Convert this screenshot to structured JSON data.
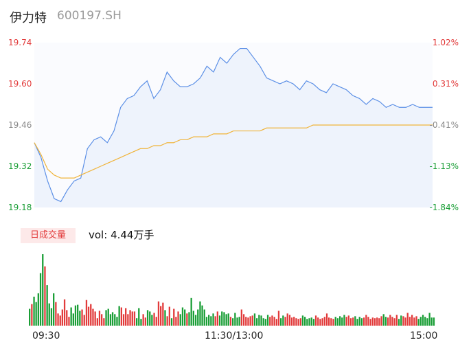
{
  "header": {
    "name": "伊力特",
    "code": "600197.SH"
  },
  "volume_panel": {
    "badge": "日成交量",
    "vol_label": "vol:",
    "vol_value": "4.44万手"
  },
  "colors": {
    "price_line": "#5b8fe6",
    "avg_line": "#f0b43a",
    "up": "#e23b3b",
    "down": "#1a9e36",
    "area_fill": "#eef3fc"
  },
  "chart_data": [
    {
      "type": "line",
      "yticks_left": [
        "19.74",
        "19.60",
        "19.46",
        "19.32",
        "19.18"
      ],
      "yticks_right": [
        "1.02%",
        "0.31%",
        "-0.41%",
        "-1.13%",
        "-1.84%"
      ],
      "ylim": [
        19.18,
        19.74
      ],
      "xticks": [
        "09:30",
        "11:30/13:00",
        "15:00"
      ],
      "x": [
        0,
        4,
        8,
        12,
        16,
        20,
        24,
        28,
        32,
        36,
        40,
        44,
        48,
        52,
        56,
        60,
        64,
        68,
        72,
        76,
        80,
        84,
        88,
        92,
        96,
        100,
        104,
        108,
        112,
        116,
        120,
        124,
        128,
        132,
        136,
        140,
        144,
        148,
        152,
        156,
        160,
        164,
        168,
        172,
        176,
        180,
        184,
        188,
        192,
        196,
        200,
        204,
        208,
        212,
        216,
        220,
        224,
        228,
        232,
        236,
        240
      ],
      "series": [
        {
          "values": [
            19.4,
            19.35,
            19.27,
            19.21,
            19.2,
            19.24,
            19.27,
            19.28,
            19.38,
            19.41,
            19.42,
            19.4,
            19.44,
            19.52,
            19.55,
            19.56,
            19.59,
            19.61,
            19.55,
            19.58,
            19.64,
            19.61,
            19.59,
            19.59,
            19.6,
            19.62,
            19.66,
            19.64,
            19.69,
            19.67,
            19.7,
            19.72,
            19.72,
            19.69,
            19.66,
            19.62,
            19.61,
            19.6,
            19.61,
            19.6,
            19.58,
            19.61,
            19.6,
            19.58,
            19.57,
            19.6,
            19.59,
            19.58,
            19.56,
            19.55,
            19.53,
            19.55,
            19.54,
            19.52,
            19.53,
            19.52,
            19.52,
            19.53,
            19.52,
            19.52,
            19.52
          ]
        },
        {
          "values": [
            19.4,
            19.36,
            19.31,
            19.29,
            19.28,
            19.28,
            19.28,
            19.29,
            19.3,
            19.31,
            19.32,
            19.33,
            19.34,
            19.35,
            19.36,
            19.37,
            19.38,
            19.38,
            19.39,
            19.39,
            19.4,
            19.4,
            19.41,
            19.41,
            19.42,
            19.42,
            19.42,
            19.43,
            19.43,
            19.43,
            19.44,
            19.44,
            19.44,
            19.44,
            19.44,
            19.45,
            19.45,
            19.45,
            19.45,
            19.45,
            19.45,
            19.45,
            19.46,
            19.46,
            19.46,
            19.46,
            19.46,
            19.46,
            19.46,
            19.46,
            19.46,
            19.46,
            19.46,
            19.46,
            19.46,
            19.46,
            19.46,
            19.46,
            19.46,
            19.46,
            19.46
          ]
        }
      ]
    },
    {
      "type": "bar",
      "values": [
        2.5,
        3.2,
        4.3,
        3.5,
        4.8,
        7.8,
        10.6,
        8.8,
        6.0,
        3.3,
        2.6,
        4.8,
        3.5,
        1.8,
        1.5,
        2.4,
        3.9,
        2.3,
        1.3,
        2.7,
        1.8,
        3.0,
        3.1,
        2.2,
        2.4,
        1.6,
        3.8,
        2.8,
        3.2,
        2.5,
        2.1,
        1.1,
        2.2,
        1.7,
        1.1,
        2.3,
        2.5,
        1.7,
        2.0,
        1.7,
        1.3,
        2.9,
        2.7,
        1.7,
        2.6,
        1.7,
        2.3,
        2.1,
        2.1,
        1.1,
        2.6,
        1.0,
        1.7,
        1.2,
        2.3,
        2.1,
        1.6,
        1.9,
        1.3,
        3.6,
        2.9,
        3.4,
        2.3,
        1.4,
        2.8,
        1.1,
        2.5,
        1.3,
        2.1,
        1.7,
        2.7,
        2.4,
        1.8,
        2.0,
        4.1,
        2.2,
        1.6,
        2.4,
        3.6,
        3.0,
        2.4,
        1.3,
        1.6,
        1.4,
        1.8,
        1.4,
        2.1,
        1.5,
        2.1,
        2.0,
        1.7,
        1.8,
        1.3,
        1.1,
        1.9,
        1.2,
        1.3,
        2.4,
        1.7,
        1.3,
        1.2,
        1.4,
        1.5,
        1.8,
        1.1,
        1.6,
        1.5,
        1.1,
        1.0,
        1.6,
        1.3,
        1.5,
        1.3,
        1.0,
        2.2,
        1.1,
        1.5,
        1.3,
        1.8,
        1.6,
        1.2,
        1.3,
        1.1,
        1.0,
        1.1,
        1.5,
        1.3,
        1.0,
        1.1,
        1.2,
        1.0,
        1.5,
        1.2,
        1.0,
        1.1,
        1.3,
        1.8,
        1.2,
        1.1,
        1.0,
        1.3,
        1.1,
        1.4,
        1.2,
        1.6,
        1.3,
        1.5,
        1.1,
        1.2,
        1.4,
        1.0,
        1.3,
        1.1,
        1.2,
        1.6,
        1.3,
        1.0,
        1.2,
        1.1,
        1.2,
        1.1,
        1.4,
        1.7,
        1.3,
        1.2,
        1.6,
        1.3,
        1.1,
        1.6,
        1.0,
        1.5,
        1.4,
        1.2,
        1.9,
        1.3,
        1.6,
        1.2,
        1.4,
        1.0,
        1.3,
        1.6,
        1.3,
        1.1,
        1.9,
        1.2,
        1.2
      ],
      "directions": "dudddddudddduuuuuuuddddduuuuuuuuuuuddddddduuuuuuuddduuddduuuuuduuduuudddudddddddddddduudddddudddduuuuuuddddddduuuuudduuuuuuuudddddduuuuuuuuuddddduuuudddduuuuuuuuudduuuuudduuuuuuuddddd"
    }
  ]
}
